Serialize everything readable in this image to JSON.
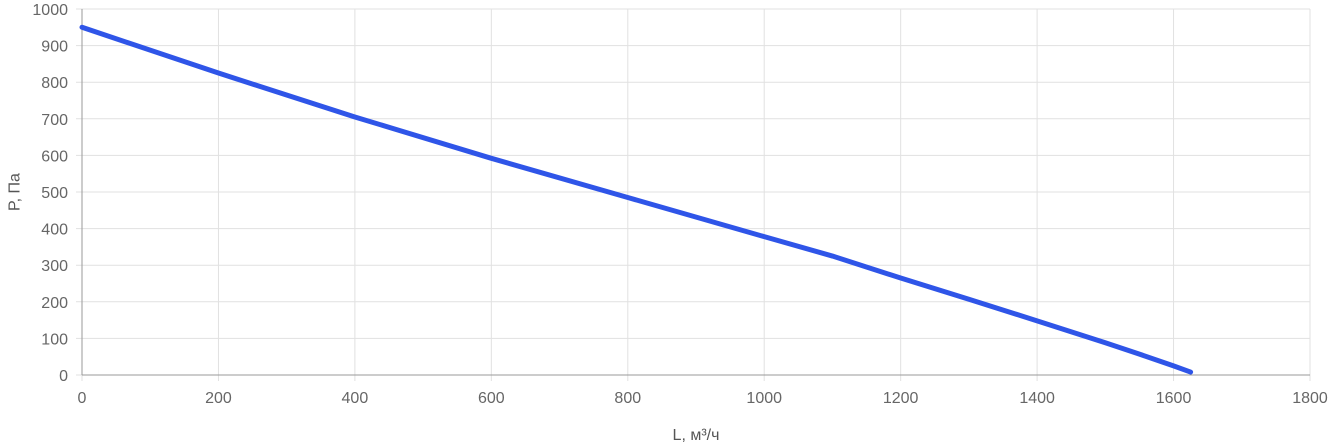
{
  "chart_data": {
    "type": "line",
    "xlabel": "L, м³/ч",
    "ylabel": "P, Па",
    "xlim": [
      0,
      1800
    ],
    "ylim": [
      0,
      1000
    ],
    "x_ticks": [
      "0",
      "200",
      "400",
      "600",
      "800",
      "1000",
      "1200",
      "1400",
      "1600",
      "1800"
    ],
    "y_ticks": [
      "0",
      "100",
      "200",
      "300",
      "400",
      "500",
      "600",
      "700",
      "800",
      "900",
      "1000"
    ],
    "grid": true,
    "series": [
      {
        "color": "#2f55e8",
        "x": [
          0,
          200,
          400,
          600,
          800,
          1000,
          1100,
          1200,
          1300,
          1400,
          1500,
          1550,
          1600,
          1625
        ],
        "y": [
          950,
          825,
          705,
          592,
          485,
          378,
          325,
          265,
          207,
          148,
          88,
          57,
          25,
          8
        ]
      }
    ]
  }
}
